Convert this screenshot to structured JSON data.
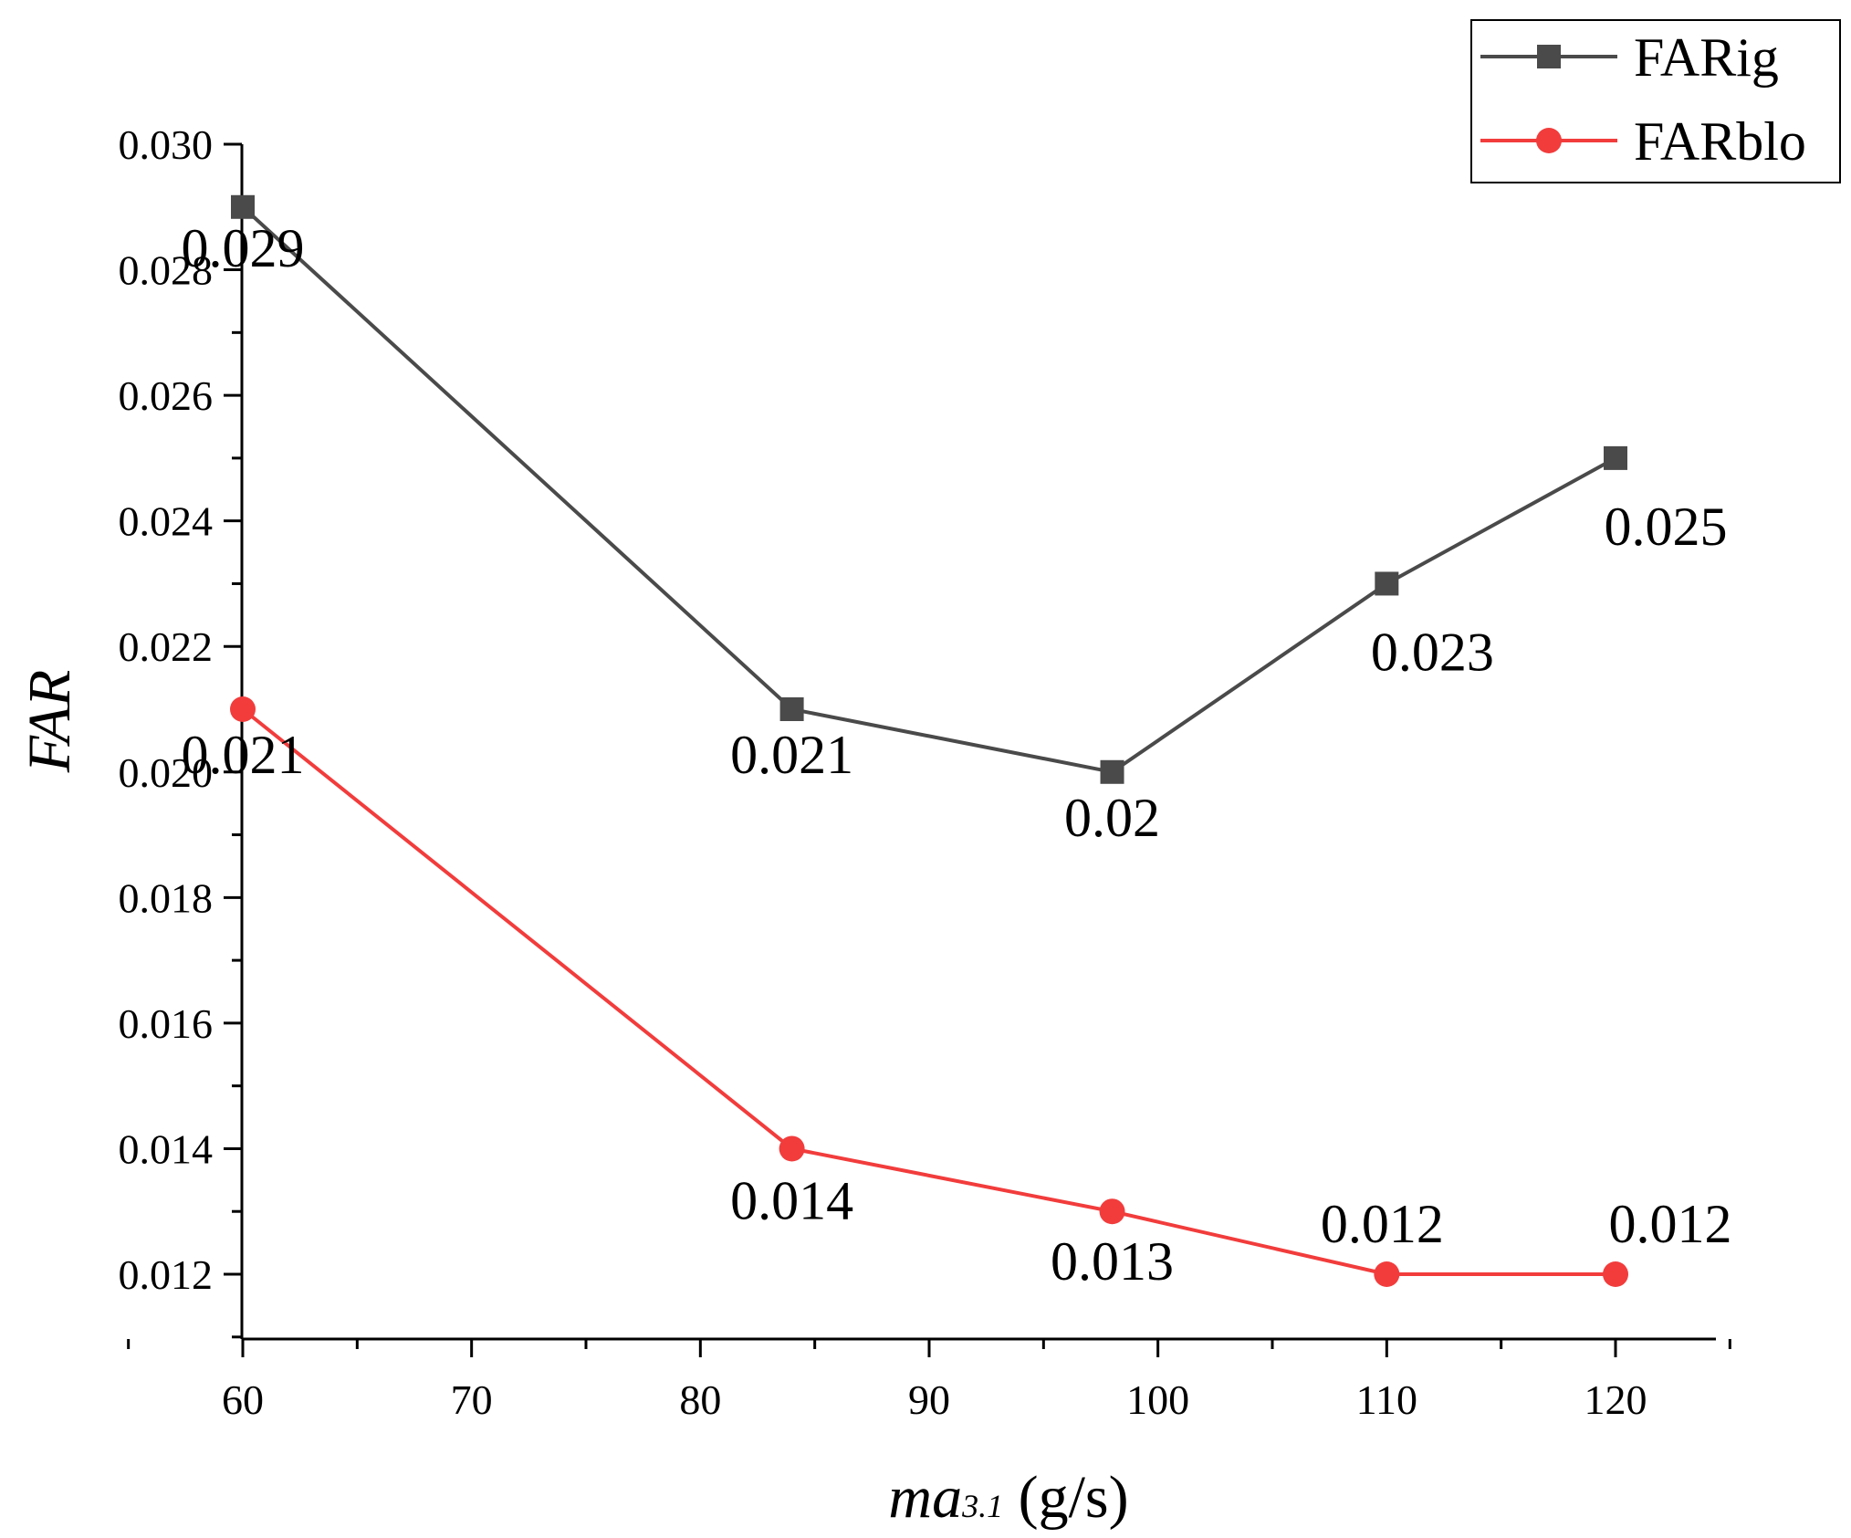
{
  "chart_data": {
    "type": "line",
    "title": "",
    "xlabel": "ma",
    "xlabel_sub": "3.1",
    "xlabel_unit": "(g/s)",
    "ylabel": "FAR",
    "xlim": [
      55,
      125
    ],
    "ylim": [
      0.011,
      0.03
    ],
    "x_ticks": [
      60,
      70,
      80,
      90,
      100,
      110,
      120
    ],
    "x_tick_labels": [
      "60",
      "70",
      "80",
      "90",
      "100",
      "110",
      "120"
    ],
    "y_ticks": [
      0.012,
      0.014,
      0.016,
      0.018,
      0.02,
      0.022,
      0.024,
      0.026,
      0.028,
      0.03
    ],
    "y_tick_labels": [
      "0.012",
      "0.014",
      "0.016",
      "0.018",
      "0.020",
      "0.022",
      "0.024",
      "0.026",
      "0.028",
      "0.030"
    ],
    "grid": false,
    "legend_position": "top-right",
    "series": [
      {
        "name": "FARig",
        "color": "#4a4a4a",
        "marker": "square",
        "x": [
          60,
          84,
          98,
          110,
          120
        ],
        "values": [
          0.029,
          0.021,
          0.02,
          0.023,
          0.025
        ],
        "labels": [
          "0.029",
          "0.021",
          "0.02",
          "0.023",
          "0.025"
        ]
      },
      {
        "name": "FARblo",
        "color": "#f23c3c",
        "marker": "circle",
        "x": [
          60,
          84,
          98,
          110,
          120
        ],
        "values": [
          0.021,
          0.014,
          0.013,
          0.012,
          0.012
        ],
        "labels": [
          "0.021",
          "0.014",
          "0.013",
          "0.012",
          "0.012"
        ]
      }
    ]
  }
}
